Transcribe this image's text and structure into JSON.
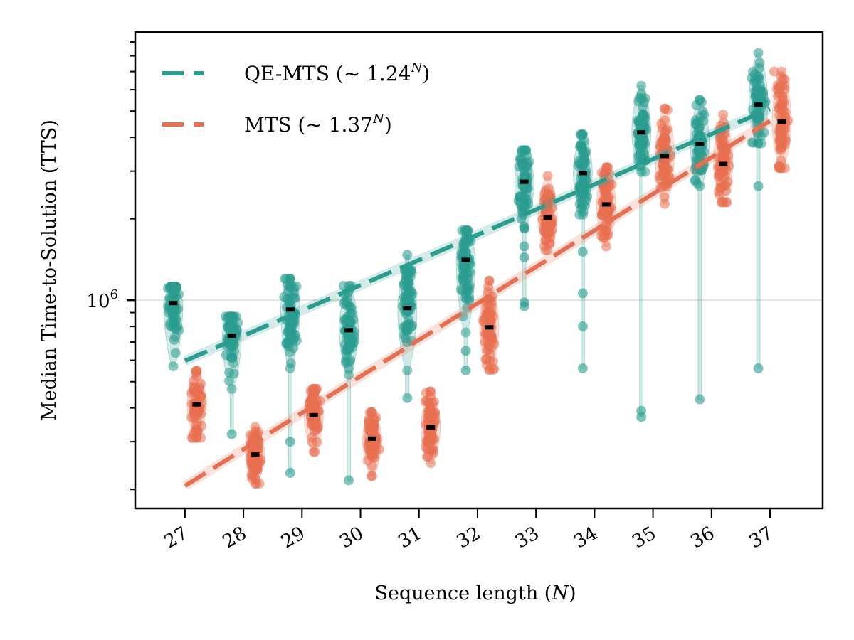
{
  "chart_data": {
    "type": "scatter",
    "title": "",
    "xlabel": "Sequence length (N)",
    "xlabel_parts": {
      "text": "Sequence length (",
      "var": "N",
      "close": ")"
    },
    "ylabel": "Median Time-to-Solution (TTS)",
    "yscale": "log",
    "ylim": [
      170000,
      9800000
    ],
    "xlim": [
      26.15,
      37.9
    ],
    "x_ticks": [
      27,
      28,
      29,
      30,
      31,
      32,
      33,
      34,
      35,
      36,
      37
    ],
    "x_tick_labels": [
      "27",
      "28",
      "29",
      "30",
      "31",
      "32",
      "33",
      "34",
      "35",
      "36",
      "37"
    ],
    "y_major_ticks": [
      {
        "value": 1000000,
        "label_base": "10",
        "label_exp": "6"
      }
    ],
    "y_minor_ticks": [
      200000,
      300000,
      400000,
      500000,
      600000,
      700000,
      800000,
      900000,
      2000000,
      3000000,
      4000000,
      5000000,
      6000000,
      7000000,
      8000000,
      9000000
    ],
    "grid": "horizontal at major tick",
    "legend": {
      "placement": "top-left",
      "entries": [
        {
          "series": "QE-MTS",
          "label": "QE-MTS",
          "fit": "1.24",
          "exponent": "N"
        },
        {
          "series": "MTS",
          "label": "MTS",
          "fit": "1.37",
          "exponent": "N"
        }
      ]
    },
    "series": [
      {
        "name": "QE-MTS",
        "color": "#2a9d8f",
        "x_offset": -0.2,
        "fit": {
          "base": 1.24,
          "x_range": [
            27,
            37
          ],
          "y_at_start": 597000,
          "y_at_end": 5100000
        },
        "distributions": [
          {
            "N": 27,
            "median": 976000,
            "min": 570000,
            "max": 1120000,
            "outliers": []
          },
          {
            "N": 28,
            "median": 738000,
            "min": 470000,
            "max": 870000,
            "outliers": [
              320000
            ]
          },
          {
            "N": 29,
            "median": 924000,
            "min": 560000,
            "max": 1200000,
            "outliers": [
              300000,
              230000
            ]
          },
          {
            "N": 30,
            "median": 775000,
            "min": 530000,
            "max": 1130000,
            "outliers": [
              216000
            ]
          },
          {
            "N": 31,
            "median": 935000,
            "min": 550000,
            "max": 1290000,
            "outliers": [
              1470000,
              435000
            ]
          },
          {
            "N": 32,
            "median": 1410000,
            "min": 760000,
            "max": 1810000,
            "outliers": [
              650000,
              550000
            ]
          },
          {
            "N": 33,
            "median": 2740000,
            "min": 1840000,
            "max": 3580000,
            "outliers": [
              1580000,
              1440000,
              980000,
              950000
            ]
          },
          {
            "N": 34,
            "median": 2950000,
            "min": 2070000,
            "max": 4100000,
            "outliers": [
              1510000,
              1060000,
              800000,
              560000
            ]
          },
          {
            "N": 35,
            "median": 4170000,
            "min": 2980000,
            "max": 6200000,
            "outliers": [
              390000,
              370000
            ]
          },
          {
            "N": 36,
            "median": 3780000,
            "min": 2640000,
            "max": 5500000,
            "outliers": [
              430000
            ]
          },
          {
            "N": 37,
            "median": 5280000,
            "min": 3800000,
            "max": 8200000,
            "outliers": [
              2640000,
              560000
            ]
          }
        ]
      },
      {
        "name": "MTS",
        "color": "#e76f51",
        "x_offset": 0.2,
        "fit": {
          "base": 1.37,
          "x_range": [
            27,
            37
          ],
          "y_at_start": 206000,
          "y_at_end": 4600000
        },
        "distributions": [
          {
            "N": 27,
            "median": 412000,
            "min": 310000,
            "max": 550000,
            "outliers": []
          },
          {
            "N": 28,
            "median": 269000,
            "min": 210000,
            "max": 340000,
            "outliers": []
          },
          {
            "N": 29,
            "median": 376000,
            "min": 275000,
            "max": 470000,
            "outliers": []
          },
          {
            "N": 30,
            "median": 308000,
            "min": 224000,
            "max": 385000,
            "outliers": []
          },
          {
            "N": 31,
            "median": 339000,
            "min": 250000,
            "max": 460000,
            "outliers": []
          },
          {
            "N": 32,
            "median": 794000,
            "min": 550000,
            "max": 1180000,
            "outliers": []
          },
          {
            "N": 33,
            "median": 2020000,
            "min": 1530000,
            "max": 2880000,
            "outliers": []
          },
          {
            "N": 34,
            "median": 2260000,
            "min": 1580000,
            "max": 3100000,
            "outliers": []
          },
          {
            "N": 35,
            "median": 3410000,
            "min": 2270000,
            "max": 5100000,
            "outliers": []
          },
          {
            "N": 36,
            "median": 3190000,
            "min": 2300000,
            "max": 4850000,
            "outliers": []
          },
          {
            "N": 37,
            "median": 4570000,
            "min": 3080000,
            "max": 7000000,
            "outliers": []
          }
        ]
      }
    ]
  }
}
